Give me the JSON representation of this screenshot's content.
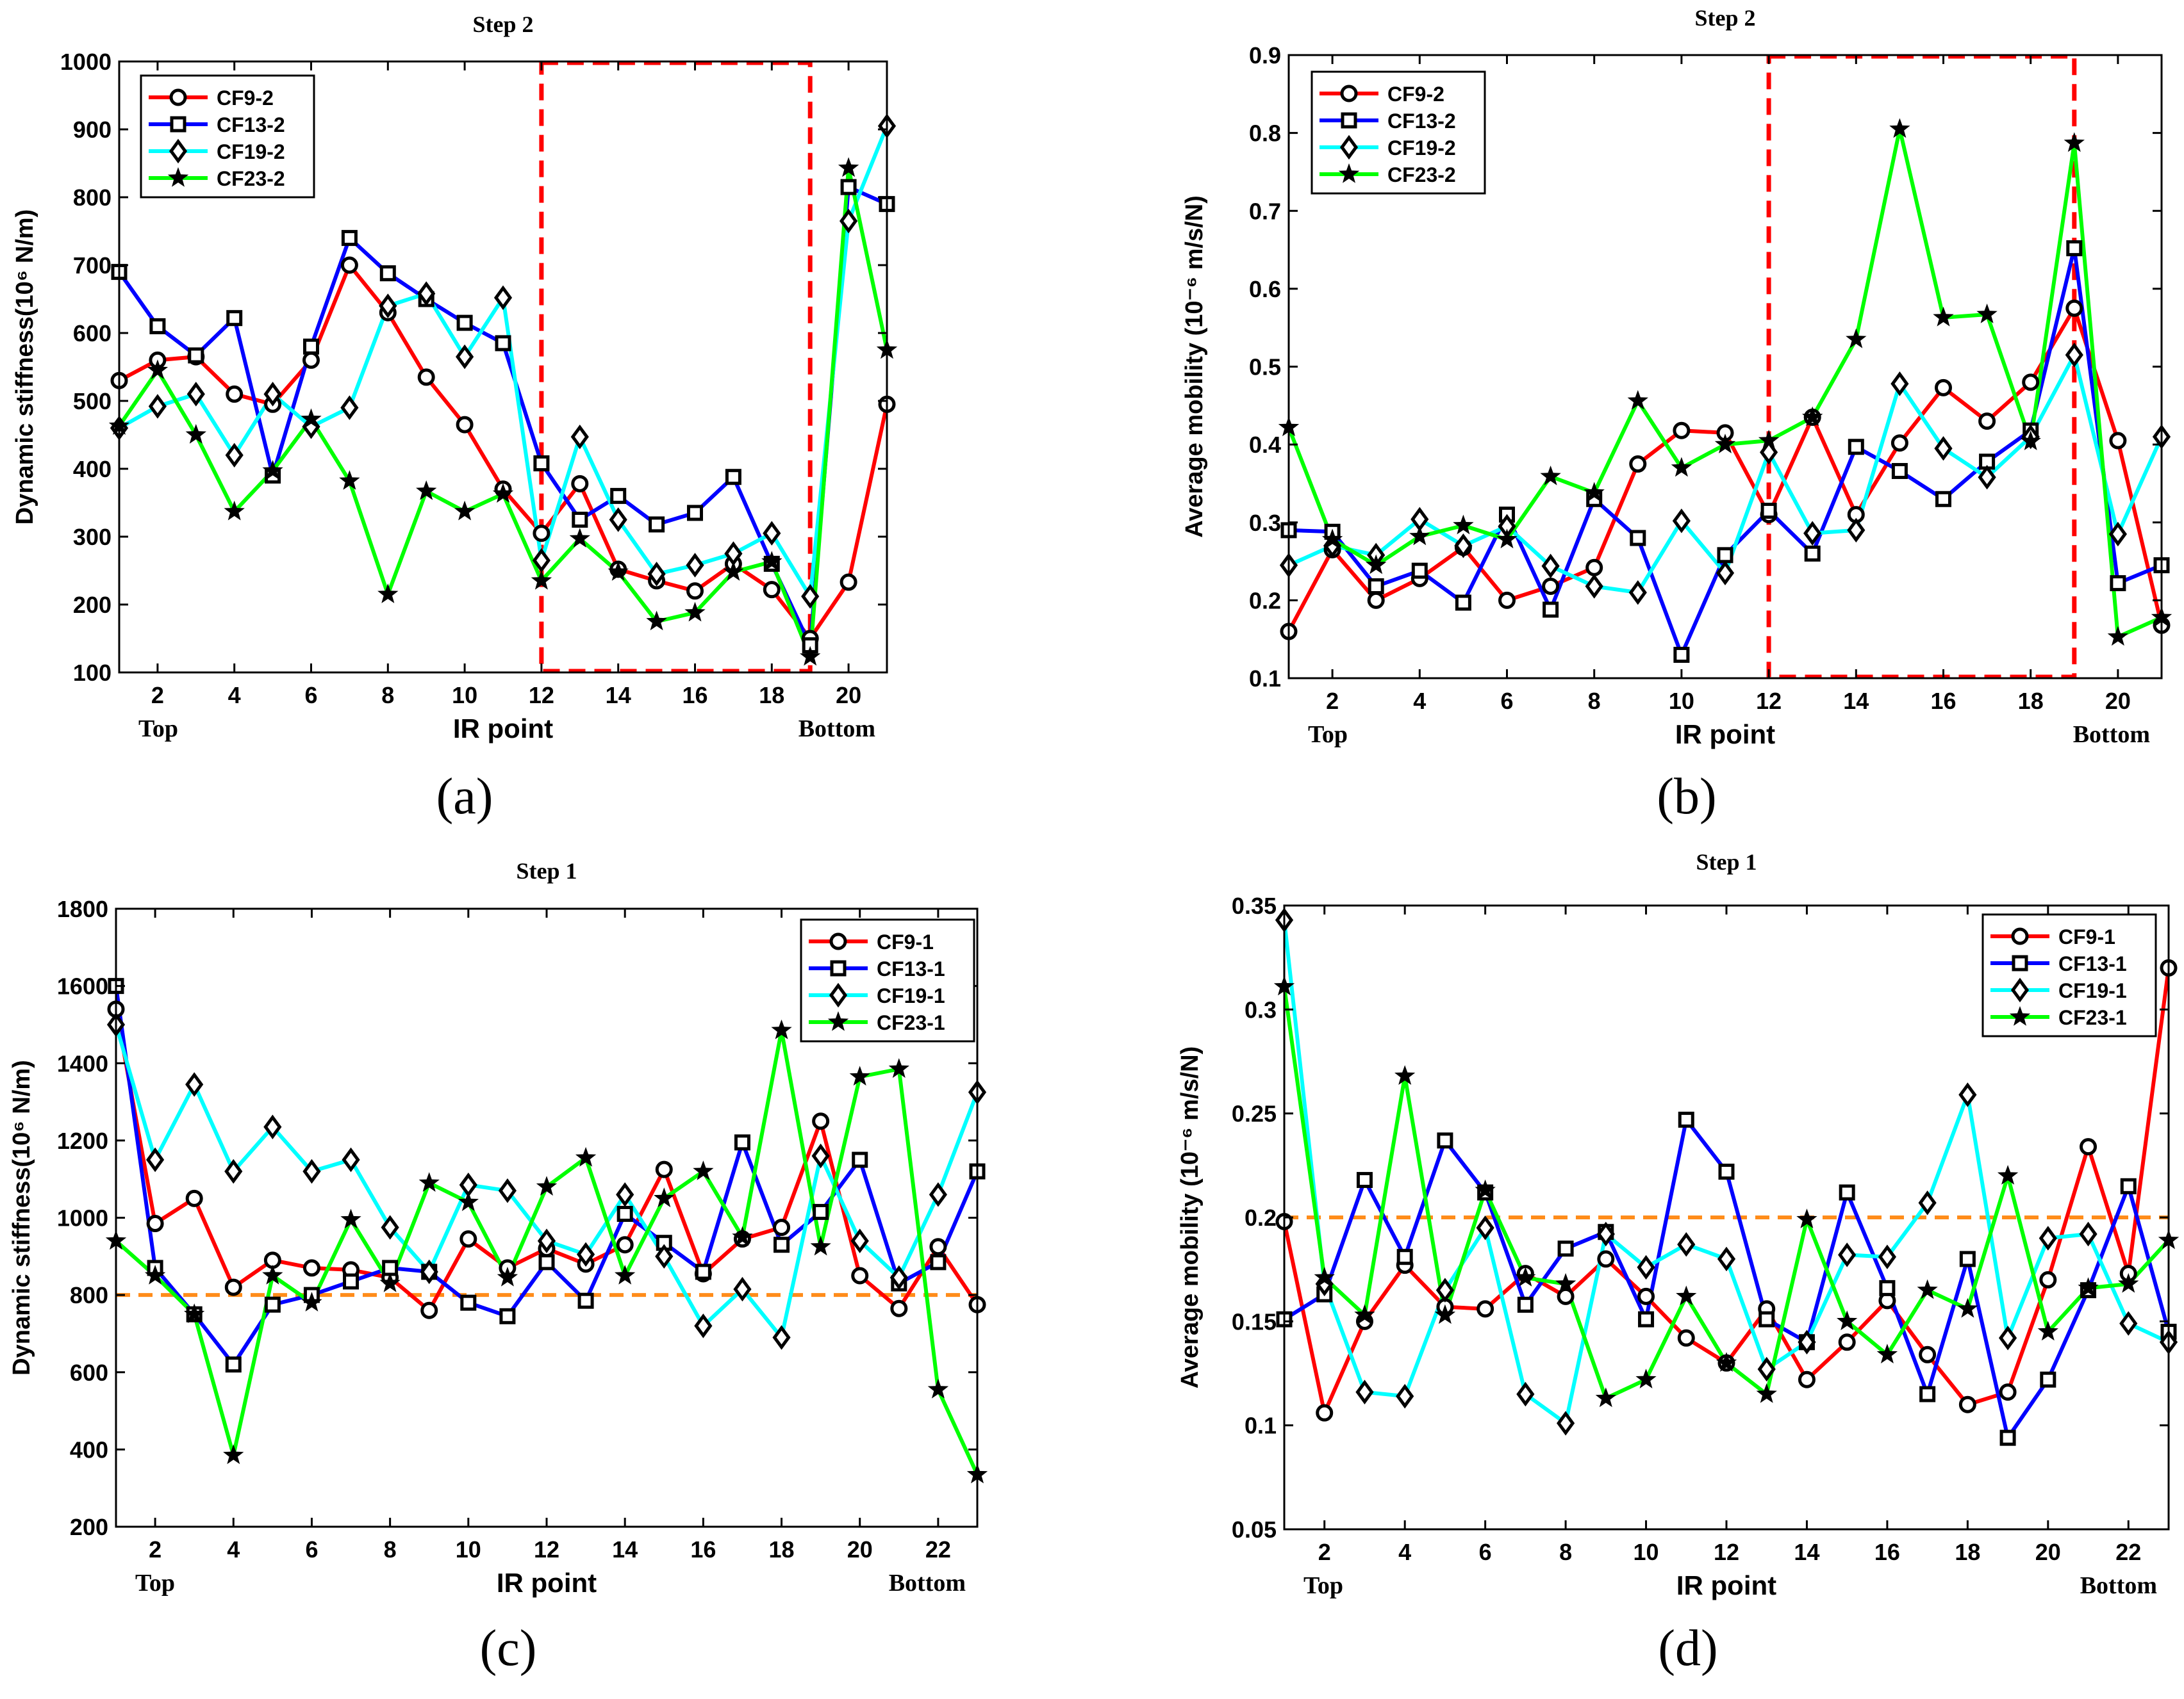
{
  "figure": {
    "line_colors": {
      "CF9": "#ff0000",
      "CF13": "#0000ff",
      "CF19": "#00ffff",
      "CF23": "#00ff00"
    },
    "markers": {
      "CF9": "circle",
      "CF13": "square",
      "CF19": "diamond",
      "CF23": "star"
    },
    "highlight_color": "#ff0000",
    "threshold_color": "#ff8c1a"
  },
  "chart_data": [
    {
      "id": "a",
      "type": "line",
      "panel_label": "(a)",
      "title": "Step 2",
      "xlabel": "IR point",
      "ylabel": "Dynamic stiffness(10⁶ N/m)",
      "x_top_label": "Top",
      "x_bottom_label": "Bottom",
      "xlim": [
        1,
        21
      ],
      "ylim": [
        100,
        1000
      ],
      "yticks": [
        100,
        200,
        300,
        400,
        500,
        600,
        700,
        800,
        900,
        1000
      ],
      "ytick_labels": [
        "100",
        "200",
        "300",
        "400",
        "500",
        "600",
        "700",
        "800",
        "900",
        "1000"
      ],
      "xticks": [
        2,
        4,
        6,
        8,
        10,
        12,
        14,
        16,
        18,
        20
      ],
      "legend_position": "top-left",
      "highlight_box": {
        "x": [
          12,
          19
        ],
        "y": [
          100,
          1000
        ]
      },
      "x": [
        1,
        2,
        3,
        4,
        5,
        6,
        7,
        8,
        9,
        10,
        11,
        12,
        13,
        14,
        15,
        16,
        17,
        18,
        19,
        20,
        21
      ],
      "series": [
        {
          "name": "CF9-2",
          "key": "CF9",
          "values": [
            530,
            560,
            565,
            510,
            495,
            560,
            700,
            630,
            535,
            465,
            370,
            305,
            378,
            252,
            235,
            220,
            260,
            222,
            150,
            233,
            495
          ]
        },
        {
          "name": "CF13-2",
          "key": "CF13",
          "values": [
            690,
            610,
            567,
            622,
            390,
            580,
            740,
            688,
            650,
            615,
            585,
            408,
            325,
            360,
            318,
            335,
            388,
            260,
            140,
            815,
            790
          ]
        },
        {
          "name": "CF19-2",
          "key": "CF19",
          "values": [
            460,
            492,
            510,
            420,
            510,
            462,
            490,
            640,
            658,
            565,
            652,
            265,
            447,
            325,
            245,
            258,
            275,
            305,
            212,
            765,
            905
          ]
        },
        {
          "name": "CF23-2",
          "key": "CF23",
          "values": [
            463,
            545,
            450,
            337,
            397,
            473,
            382,
            215,
            367,
            337,
            363,
            235,
            297,
            248,
            175,
            188,
            248,
            263,
            123,
            843,
            575
          ]
        }
      ]
    },
    {
      "id": "b",
      "type": "line",
      "panel_label": "(b)",
      "title": "Step 2",
      "xlabel": "IR point",
      "ylabel": "Average mobility (10⁻⁶ m/s/N)",
      "x_top_label": "Top",
      "x_bottom_label": "Bottom",
      "xlim": [
        1,
        21
      ],
      "ylim": [
        0.1,
        0.9
      ],
      "yticks": [
        0.1,
        0.2,
        0.3,
        0.4,
        0.5,
        0.6,
        0.7,
        0.8,
        0.9
      ],
      "ytick_labels": [
        "0.1",
        "0.2",
        "0.3",
        "0.4",
        "0.5",
        "0.6",
        "0.7",
        "0.8",
        "0.9"
      ],
      "xticks": [
        2,
        4,
        6,
        8,
        10,
        12,
        14,
        16,
        18,
        20
      ],
      "legend_position": "top-left",
      "highlight_box": {
        "x": [
          12,
          19
        ],
        "y": [
          0.1,
          0.9
        ]
      },
      "x": [
        1,
        2,
        3,
        4,
        5,
        6,
        7,
        8,
        9,
        10,
        11,
        12,
        13,
        14,
        15,
        16,
        17,
        18,
        19,
        20,
        21
      ],
      "series": [
        {
          "name": "CF9-2",
          "key": "CF9",
          "values": [
            0.16,
            0.265,
            0.2,
            0.228,
            0.268,
            0.2,
            0.218,
            0.242,
            0.375,
            0.418,
            0.415,
            0.31,
            0.435,
            0.31,
            0.402,
            0.473,
            0.43,
            0.48,
            0.575,
            0.405,
            0.168
          ]
        },
        {
          "name": "CF13-2",
          "key": "CF13",
          "values": [
            0.29,
            0.288,
            0.218,
            0.238,
            0.197,
            0.31,
            0.188,
            0.33,
            0.28,
            0.13,
            0.258,
            0.315,
            0.26,
            0.397,
            0.366,
            0.33,
            0.378,
            0.418,
            0.652,
            0.222,
            0.245
          ]
        },
        {
          "name": "CF19-2",
          "key": "CF19",
          "values": [
            0.245,
            0.27,
            0.258,
            0.304,
            0.27,
            0.295,
            0.244,
            0.218,
            0.21,
            0.302,
            0.235,
            0.39,
            0.286,
            0.29,
            0.478,
            0.395,
            0.358,
            0.41,
            0.515,
            0.285,
            0.41
          ]
        },
        {
          "name": "CF23-2",
          "key": "CF23",
          "values": [
            0.422,
            0.278,
            0.245,
            0.282,
            0.296,
            0.278,
            0.359,
            0.338,
            0.456,
            0.37,
            0.4,
            0.405,
            0.435,
            0.535,
            0.805,
            0.563,
            0.567,
            0.404,
            0.787,
            0.153,
            0.178
          ]
        }
      ]
    },
    {
      "id": "c",
      "type": "line",
      "panel_label": "(c)",
      "title": "Step 1",
      "xlabel": "IR point",
      "ylabel": "Dynamic stiffness(10⁶ N/m)",
      "x_top_label": "Top",
      "x_bottom_label": "Bottom",
      "xlim": [
        1,
        23
      ],
      "ylim": [
        200,
        1800
      ],
      "yticks": [
        200,
        400,
        600,
        800,
        1000,
        1200,
        1400,
        1600,
        1800
      ],
      "ytick_labels": [
        "200",
        "400",
        "600",
        "800",
        "1000",
        "1200",
        "1400",
        "1600",
        "1800"
      ],
      "xticks": [
        2,
        4,
        6,
        8,
        10,
        12,
        14,
        16,
        18,
        20,
        22
      ],
      "legend_position": "top-right",
      "threshold": 800,
      "x": [
        1,
        2,
        3,
        4,
        5,
        6,
        7,
        8,
        9,
        10,
        11,
        12,
        13,
        14,
        15,
        16,
        17,
        18,
        19,
        20,
        21,
        22,
        23
      ],
      "series": [
        {
          "name": "CF9-1",
          "key": "CF9",
          "values": [
            1540,
            985,
            1050,
            820,
            890,
            870,
            865,
            845,
            760,
            945,
            870,
            920,
            880,
            930,
            1125,
            855,
            945,
            975,
            1250,
            850,
            765,
            925,
            775
          ]
        },
        {
          "name": "CF13-1",
          "key": "CF13",
          "values": [
            1600,
            870,
            750,
            620,
            775,
            800,
            835,
            870,
            860,
            780,
            745,
            885,
            785,
            1010,
            935,
            860,
            1195,
            930,
            1015,
            1150,
            830,
            885,
            1120
          ]
        },
        {
          "name": "CF19-1",
          "key": "CF19",
          "values": [
            1500,
            1150,
            1345,
            1120,
            1235,
            1120,
            1150,
            975,
            860,
            1085,
            1070,
            940,
            905,
            1060,
            900,
            720,
            815,
            690,
            1160,
            940,
            845,
            1060,
            1325
          ]
        },
        {
          "name": "CF23-1",
          "key": "CF23",
          "values": [
            940,
            850,
            750,
            385,
            850,
            780,
            995,
            830,
            1090,
            1040,
            845,
            1080,
            1155,
            850,
            1050,
            1120,
            950,
            1485,
            925,
            1365,
            1385,
            555,
            335
          ]
        }
      ]
    },
    {
      "id": "d",
      "type": "line",
      "panel_label": "(d)",
      "title": "Step 1",
      "xlabel": "IR point",
      "ylabel": "Average mobility (10⁻⁶ m/s/N)",
      "x_top_label": "Top",
      "x_bottom_label": "Bottom",
      "xlim": [
        1,
        23
      ],
      "ylim": [
        0.05,
        0.35
      ],
      "yticks": [
        0.05,
        0.1,
        0.15,
        0.2,
        0.25,
        0.3,
        0.35
      ],
      "ytick_labels": [
        "0.05",
        "0.1",
        "0.15",
        "0.2",
        "0.25",
        "0.3",
        "0.35"
      ],
      "xticks": [
        2,
        4,
        6,
        8,
        10,
        12,
        14,
        16,
        18,
        20,
        22
      ],
      "legend_position": "top-right",
      "threshold": 0.2,
      "x": [
        1,
        2,
        3,
        4,
        5,
        6,
        7,
        8,
        9,
        10,
        11,
        12,
        13,
        14,
        15,
        16,
        17,
        18,
        19,
        20,
        21,
        22,
        23
      ],
      "series": [
        {
          "name": "CF9-1",
          "key": "CF9",
          "values": [
            0.198,
            0.106,
            0.15,
            0.177,
            0.157,
            0.156,
            0.173,
            0.162,
            0.18,
            0.162,
            0.142,
            0.13,
            0.156,
            0.122,
            0.14,
            0.16,
            0.134,
            0.11,
            0.116,
            0.17,
            0.234,
            0.173,
            0.32
          ]
        },
        {
          "name": "CF13-1",
          "key": "CF13",
          "values": [
            0.151,
            0.163,
            0.218,
            0.181,
            0.237,
            0.212,
            0.158,
            0.185,
            0.193,
            0.151,
            0.247,
            0.222,
            0.151,
            0.14,
            0.212,
            0.166,
            0.115,
            0.18,
            0.094,
            0.122,
            0.165,
            0.215,
            0.145
          ]
        },
        {
          "name": "CF19-1",
          "key": "CF19",
          "values": [
            0.343,
            0.168,
            0.116,
            0.114,
            0.165,
            0.195,
            0.115,
            0.101,
            0.192,
            0.176,
            0.187,
            0.18,
            0.127,
            0.14,
            0.182,
            0.181,
            0.207,
            0.259,
            0.142,
            0.19,
            0.192,
            0.149,
            0.14
          ]
        },
        {
          "name": "CF23-1",
          "key": "CF23",
          "values": [
            0.311,
            0.171,
            0.153,
            0.268,
            0.153,
            0.213,
            0.171,
            0.168,
            0.113,
            0.122,
            0.162,
            0.13,
            0.115,
            0.199,
            0.15,
            0.134,
            0.165,
            0.156,
            0.22,
            0.145,
            0.166,
            0.168,
            0.189
          ]
        }
      ]
    }
  ]
}
